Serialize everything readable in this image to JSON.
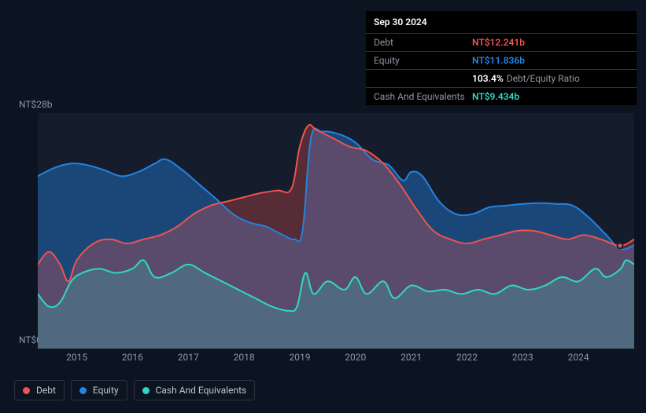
{
  "tooltip": {
    "date": "Sep 30 2024",
    "rows": [
      {
        "label": "Debt",
        "value": "NT$12.241b",
        "class": "debt"
      },
      {
        "label": "Equity",
        "value": "NT$11.836b",
        "class": "equity"
      },
      {
        "label": "",
        "value": "103.4%",
        "class": "ratio",
        "suffix": "Debt/Equity Ratio"
      },
      {
        "label": "Cash And Equivalents",
        "value": "NT$9.434b",
        "class": "cash"
      }
    ]
  },
  "chart": {
    "type": "area",
    "background_color": "#151c2c",
    "ylim": [
      0,
      28
    ],
    "y_ticks": [
      {
        "value": 28,
        "label": "NT$28b"
      },
      {
        "value": 0,
        "label": "NT$0b"
      }
    ],
    "x_years": [
      2015,
      2016,
      2017,
      2018,
      2019,
      2020,
      2021,
      2022,
      2023,
      2024
    ],
    "x_range": [
      2014.3,
      2025.0
    ],
    "series": {
      "equity": {
        "label": "Equity",
        "color": "#2383e2",
        "fill": "rgba(35,131,226,0.42)",
        "stroke_width": 2,
        "points": [
          [
            2014.3,
            20.5
          ],
          [
            2014.6,
            21.5
          ],
          [
            2014.9,
            22.0
          ],
          [
            2015.2,
            21.8
          ],
          [
            2015.5,
            21.2
          ],
          [
            2015.8,
            20.5
          ],
          [
            2016.1,
            21.0
          ],
          [
            2016.4,
            22.0
          ],
          [
            2016.6,
            22.5
          ],
          [
            2016.9,
            21.2
          ],
          [
            2017.2,
            19.5
          ],
          [
            2017.5,
            17.8
          ],
          [
            2017.8,
            16.0
          ],
          [
            2018.1,
            15.0
          ],
          [
            2018.4,
            14.5
          ],
          [
            2018.7,
            13.5
          ],
          [
            2018.9,
            13.0
          ],
          [
            2019.05,
            14.0
          ],
          [
            2019.2,
            25.0
          ],
          [
            2019.4,
            25.8
          ],
          [
            2019.7,
            25.5
          ],
          [
            2020.0,
            24.5
          ],
          [
            2020.3,
            22.5
          ],
          [
            2020.6,
            21.8
          ],
          [
            2020.85,
            20.0
          ],
          [
            2021.0,
            21.0
          ],
          [
            2021.2,
            20.5
          ],
          [
            2021.5,
            17.5
          ],
          [
            2021.8,
            16.0
          ],
          [
            2022.1,
            16.0
          ],
          [
            2022.4,
            16.8
          ],
          [
            2022.7,
            17.0
          ],
          [
            2023.0,
            17.2
          ],
          [
            2023.3,
            17.3
          ],
          [
            2023.6,
            17.2
          ],
          [
            2023.9,
            17.0
          ],
          [
            2024.2,
            15.5
          ],
          [
            2024.5,
            13.5
          ],
          [
            2024.75,
            11.836
          ],
          [
            2025.0,
            12.3
          ]
        ]
      },
      "debt": {
        "label": "Debt",
        "color": "#ef5350",
        "fill": "rgba(239,83,80,0.30)",
        "stroke_width": 2,
        "points": [
          [
            2014.3,
            10.0
          ],
          [
            2014.5,
            11.5
          ],
          [
            2014.7,
            10.0
          ],
          [
            2014.85,
            8.0
          ],
          [
            2015.0,
            10.5
          ],
          [
            2015.3,
            12.5
          ],
          [
            2015.6,
            13.0
          ],
          [
            2015.9,
            12.5
          ],
          [
            2016.2,
            13.0
          ],
          [
            2016.5,
            13.5
          ],
          [
            2016.8,
            14.5
          ],
          [
            2017.1,
            16.0
          ],
          [
            2017.4,
            17.0
          ],
          [
            2017.7,
            17.5
          ],
          [
            2018.0,
            18.0
          ],
          [
            2018.3,
            18.5
          ],
          [
            2018.6,
            18.8
          ],
          [
            2018.85,
            19.0
          ],
          [
            2019.0,
            24.0
          ],
          [
            2019.15,
            26.5
          ],
          [
            2019.3,
            26.0
          ],
          [
            2019.6,
            25.0
          ],
          [
            2019.9,
            24.0
          ],
          [
            2020.2,
            23.5
          ],
          [
            2020.5,
            22.0
          ],
          [
            2020.8,
            19.5
          ],
          [
            2021.1,
            16.5
          ],
          [
            2021.4,
            14.0
          ],
          [
            2021.7,
            13.0
          ],
          [
            2022.0,
            12.5
          ],
          [
            2022.3,
            13.0
          ],
          [
            2022.6,
            13.5
          ],
          [
            2022.9,
            14.0
          ],
          [
            2023.2,
            14.0
          ],
          [
            2023.5,
            13.5
          ],
          [
            2023.8,
            13.0
          ],
          [
            2024.1,
            13.5
          ],
          [
            2024.4,
            13.0
          ],
          [
            2024.75,
            12.241
          ],
          [
            2025.0,
            13.0
          ]
        ]
      },
      "cash": {
        "label": "Cash And Equivalents",
        "color": "#2ed9c3",
        "fill": "rgba(46,217,195,0.22)",
        "stroke_width": 2,
        "points": [
          [
            2014.3,
            6.5
          ],
          [
            2014.5,
            5.0
          ],
          [
            2014.7,
            5.5
          ],
          [
            2014.9,
            8.0
          ],
          [
            2015.1,
            9.0
          ],
          [
            2015.4,
            9.5
          ],
          [
            2015.7,
            9.0
          ],
          [
            2016.0,
            9.5
          ],
          [
            2016.2,
            10.5
          ],
          [
            2016.4,
            8.5
          ],
          [
            2016.7,
            9.0
          ],
          [
            2017.0,
            10.0
          ],
          [
            2017.3,
            9.0
          ],
          [
            2017.6,
            8.0
          ],
          [
            2017.9,
            7.0
          ],
          [
            2018.2,
            6.0
          ],
          [
            2018.5,
            5.0
          ],
          [
            2018.8,
            4.5
          ],
          [
            2018.95,
            5.0
          ],
          [
            2019.1,
            9.0
          ],
          [
            2019.25,
            6.5
          ],
          [
            2019.5,
            8.0
          ],
          [
            2019.8,
            7.0
          ],
          [
            2020.0,
            8.5
          ],
          [
            2020.2,
            6.5
          ],
          [
            2020.5,
            8.0
          ],
          [
            2020.7,
            6.0
          ],
          [
            2021.0,
            7.5
          ],
          [
            2021.3,
            6.8
          ],
          [
            2021.6,
            7.0
          ],
          [
            2021.9,
            6.5
          ],
          [
            2022.2,
            7.0
          ],
          [
            2022.5,
            6.5
          ],
          [
            2022.8,
            7.5
          ],
          [
            2023.1,
            7.0
          ],
          [
            2023.4,
            7.5
          ],
          [
            2023.7,
            8.5
          ],
          [
            2024.0,
            8.0
          ],
          [
            2024.3,
            9.5
          ],
          [
            2024.5,
            8.5
          ],
          [
            2024.75,
            9.434
          ],
          [
            2024.85,
            10.5
          ],
          [
            2025.0,
            10.0
          ]
        ]
      }
    },
    "legend_order": [
      "debt",
      "equity",
      "cash"
    ],
    "hover_x": 2024.75
  }
}
